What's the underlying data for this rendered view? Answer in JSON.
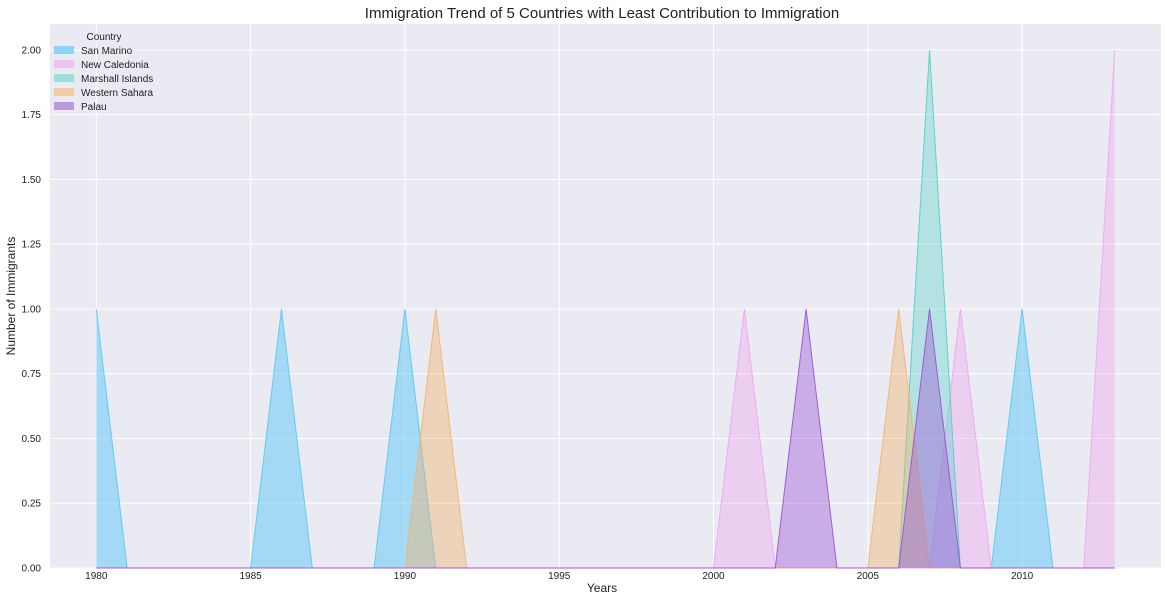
{
  "chart_data": {
    "type": "area",
    "title": "Immigration Trend of 5 Countries with Least Contribution to Immigration",
    "xlabel": "Years",
    "ylabel": "Number of Immigrants",
    "xlim": [
      1978.5,
      2014.5
    ],
    "ylim": [
      0,
      2.1
    ],
    "xticks": [
      1980,
      1985,
      1990,
      1995,
      2000,
      2005,
      2010
    ],
    "yticks": [
      0,
      0.25,
      0.5,
      0.75,
      1.0,
      1.25,
      1.5,
      1.75,
      2.0
    ],
    "ytick_labels": [
      "0.00",
      "0.25",
      "0.50",
      "0.75",
      "1.00",
      "1.25",
      "1.50",
      "1.75",
      "2.00"
    ],
    "grid": true,
    "background": "#eaeaf2",
    "legend": {
      "title": "Country",
      "placement": "top-left"
    },
    "x": [
      1980,
      1981,
      1982,
      1983,
      1984,
      1985,
      1986,
      1987,
      1988,
      1989,
      1990,
      1991,
      1992,
      1993,
      1994,
      1995,
      1996,
      1997,
      1998,
      1999,
      2000,
      2001,
      2002,
      2003,
      2004,
      2005,
      2006,
      2007,
      2008,
      2009,
      2010,
      2011,
      2012,
      2013
    ],
    "series": [
      {
        "name": "San Marino",
        "color": "#5bc8f5",
        "opacity": 0.5,
        "values": [
          1,
          0,
          0,
          0,
          0,
          0,
          1,
          0,
          0,
          0,
          1,
          0,
          0,
          0,
          0,
          0,
          0,
          0,
          0,
          0,
          0,
          0,
          0,
          0,
          0,
          0,
          0,
          0,
          0,
          0,
          1,
          0,
          0,
          0
        ]
      },
      {
        "name": "New Caledonia",
        "color": "#f0a5f0",
        "opacity": 0.4,
        "values": [
          0,
          0,
          0,
          0,
          0,
          0,
          0,
          0,
          0,
          0,
          0,
          0,
          0,
          0,
          0,
          0,
          0,
          0,
          0,
          0,
          0,
          1,
          0,
          0,
          0,
          0,
          0,
          0,
          1,
          0,
          0,
          0,
          0,
          2
        ]
      },
      {
        "name": "Marshall Islands",
        "color": "#4fd1c5",
        "opacity": 0.35,
        "values": [
          0,
          0,
          0,
          0,
          0,
          0,
          0,
          0,
          0,
          0,
          0,
          0,
          0,
          0,
          0,
          0,
          0,
          0,
          0,
          0,
          0,
          0,
          0,
          0,
          0,
          0,
          0,
          2,
          0,
          0,
          0,
          0,
          0,
          0
        ]
      },
      {
        "name": "Western Sahara",
        "color": "#f5b26a",
        "opacity": 0.4,
        "values": [
          0,
          0,
          0,
          0,
          0,
          0,
          0,
          0,
          0,
          0,
          0,
          1,
          0,
          0,
          0,
          0,
          0,
          0,
          0,
          0,
          0,
          0,
          0,
          0,
          0,
          0,
          1,
          0,
          0,
          0,
          0,
          0,
          0,
          0
        ]
      },
      {
        "name": "Palau",
        "color": "#9b50d6",
        "opacity": 0.4,
        "values": [
          0,
          0,
          0,
          0,
          0,
          0,
          0,
          0,
          0,
          0,
          0,
          0,
          0,
          0,
          0,
          0,
          0,
          0,
          0,
          0,
          0,
          0,
          0,
          1,
          0,
          0,
          0,
          1,
          0,
          0,
          0,
          0,
          0,
          0
        ]
      }
    ]
  }
}
